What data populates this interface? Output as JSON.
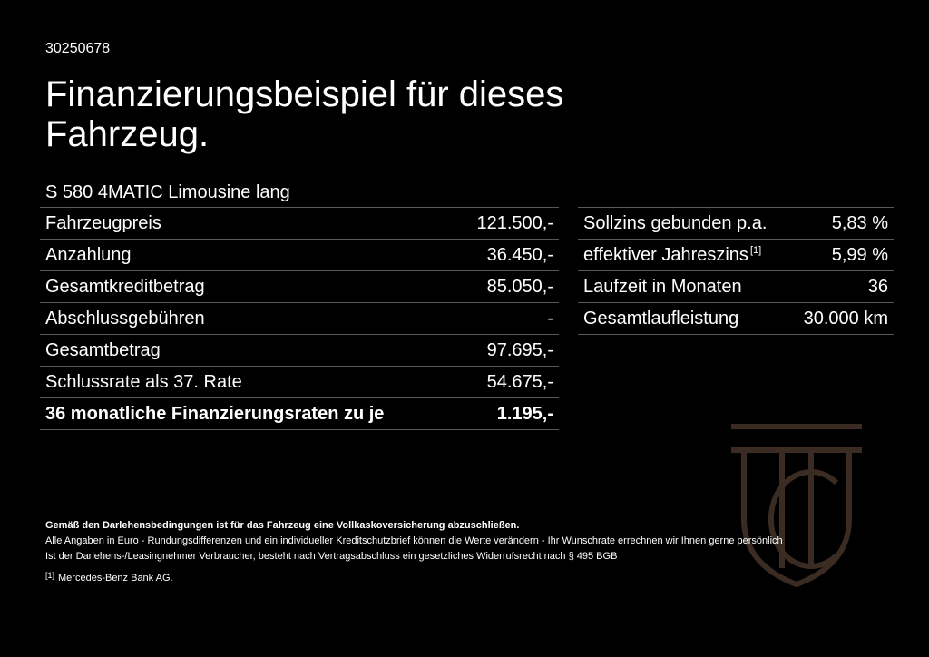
{
  "ref_number": "30250678",
  "title": "Finanzierungsbeispiel für dieses Fahrzeug.",
  "model": "S 580 4MATIC Limousine lang",
  "finance_rows": [
    {
      "label": "Fahrzeugpreis",
      "value": "121.500,-"
    },
    {
      "label": "Anzahlung",
      "value": "36.450,-"
    },
    {
      "label": "Gesamtkreditbetrag",
      "value": "85.050,-"
    },
    {
      "label": "Abschlussgebühren",
      "value": "-"
    },
    {
      "label": "Gesamtbetrag",
      "value": "97.695,-"
    },
    {
      "label": "Schlussrate als 37. Rate",
      "value": "54.675,-"
    },
    {
      "label": "36 monatliche Finanzierungsraten zu je",
      "value": "1.195,-"
    }
  ],
  "terms_rows": [
    {
      "label": "Sollzins gebunden p.a.",
      "value": "5,83 %"
    },
    {
      "label": "effektiver Jahreszins",
      "footnote": "[1]",
      "value": "5,99 %"
    },
    {
      "label": "Laufzeit in Monaten",
      "value": "36"
    },
    {
      "label": "Gesamtlaufleistung",
      "value": "30.000 km"
    }
  ],
  "notes": {
    "bold_line": "Gemäß den Darlehensbedingungen ist für das Fahrzeug eine Vollkaskoversicherung abzuschließen.",
    "line1": "Alle Angaben in Euro - Rundungsdifferenzen und ein individueller Kreditschutzbrief können die Werte verändern - Ihr Wunschrate errechnen wir Ihnen gerne persönlich",
    "line2": "Ist der Darlehens-/Leasingnehmer Verbraucher, besteht nach Vertragsabschluss ein gesetzliches Widerrufsrecht nach § 495 BGB",
    "footnote_mark": "[1]",
    "footnote_text": "Mercedes-Benz Bank AG."
  },
  "colors": {
    "background": "#000000",
    "text": "#ffffff",
    "divider": "#5a5a5a",
    "logo": "#3a2c22"
  },
  "icons": {
    "watermark": "monogram-logo-icon"
  }
}
